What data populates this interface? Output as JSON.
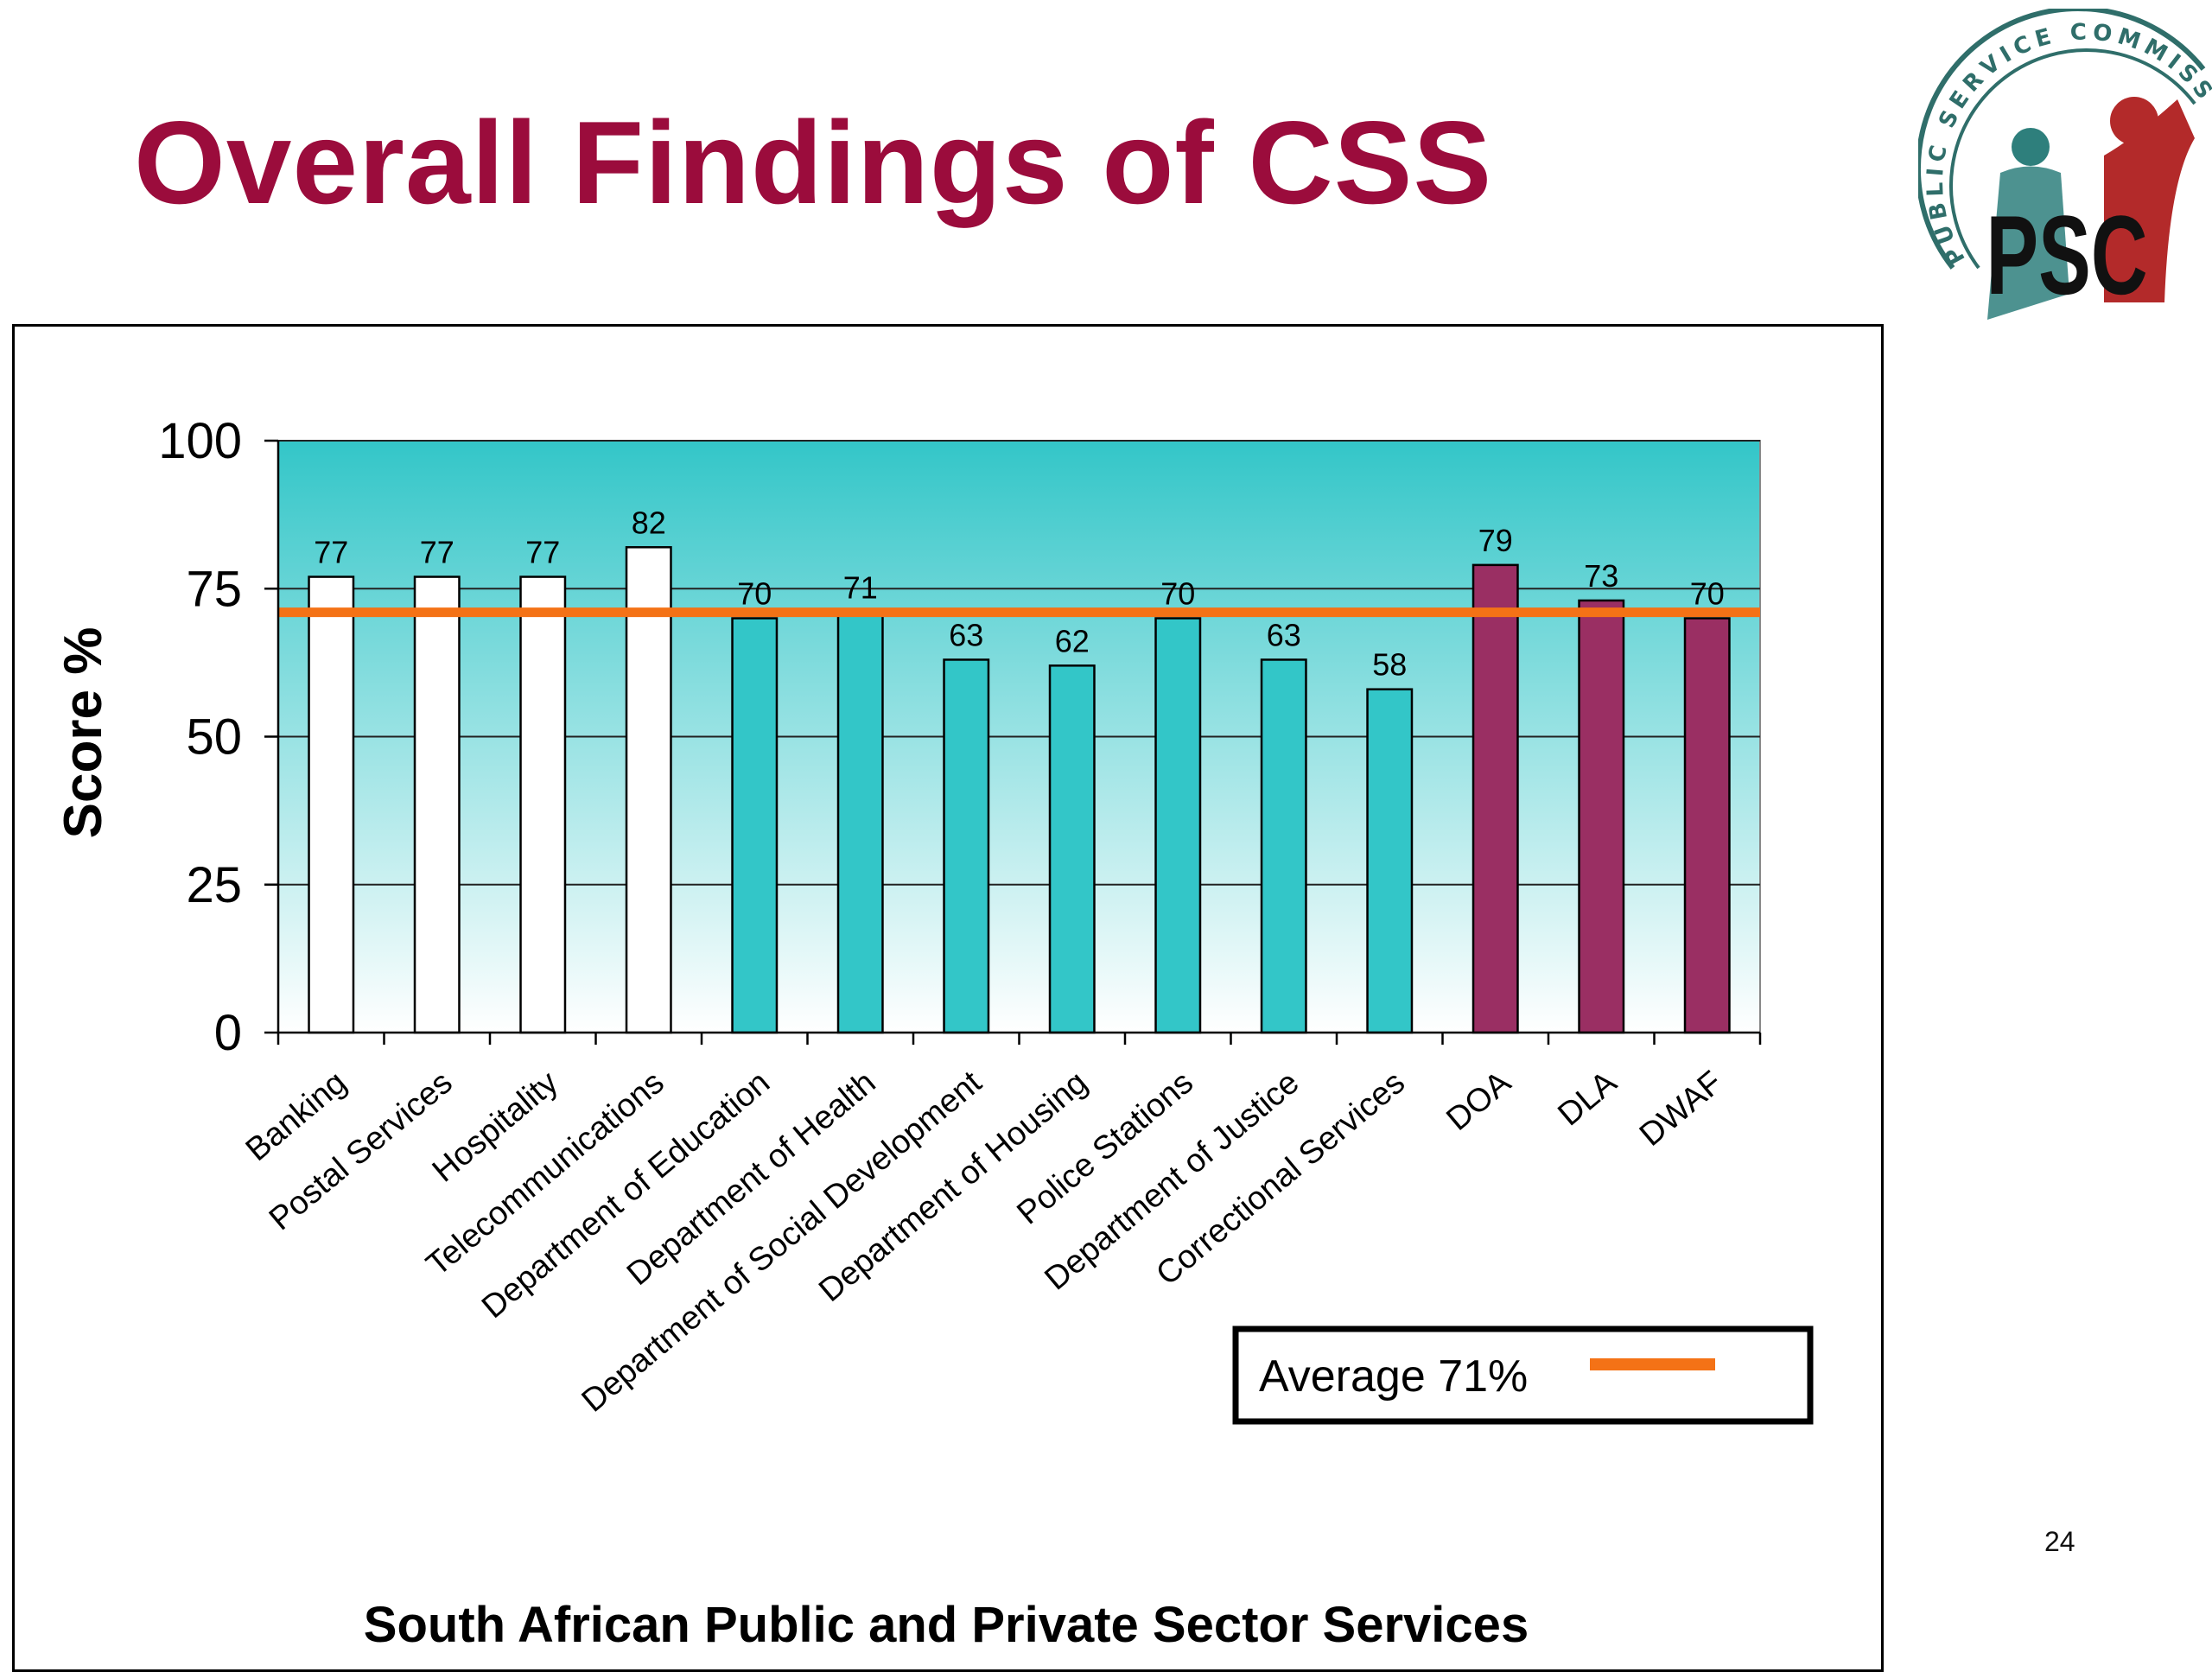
{
  "slide": {
    "title": "Overall Findings of CSS",
    "page_number": "24"
  },
  "logo": {
    "arc_text": "PUBLIC SERVICE COMMISSION",
    "letters": "PSC",
    "colors": {
      "teal": "#2e7f7c",
      "red": "#b32a2a",
      "ring": "#2f6e6a"
    }
  },
  "chart_data": {
    "type": "bar",
    "categories": [
      "Banking",
      "Postal Services",
      "Hospitality",
      "Telecommunications",
      "Department of Education",
      "Department of Health",
      "Department of Social Development",
      "Department of Housing",
      "Police Stations",
      "Department of Justice",
      "Correctional Services",
      "DOA",
      "DLA",
      "DWAF"
    ],
    "values": [
      77,
      77,
      77,
      82,
      70,
      71,
      63,
      62,
      70,
      63,
      58,
      79,
      73,
      70
    ],
    "groups": [
      "private",
      "private",
      "private",
      "private",
      "public",
      "public",
      "public",
      "public",
      "public",
      "public",
      "public",
      "dept",
      "dept",
      "dept"
    ],
    "group_colors": {
      "private": "#ffffff",
      "public": "#33c6c8",
      "dept": "#9a2f63"
    },
    "average": {
      "value": 71,
      "label": "Average 71%",
      "color": "#f47216"
    },
    "title": "",
    "xlabel": "South African Public and Private Sector Services",
    "ylabel": "Score %",
    "ylim": [
      0,
      100
    ],
    "yticks": [
      0,
      25,
      50,
      75,
      100
    ],
    "grid": true,
    "legend_position": "bottom-right",
    "plot_gradient": {
      "top": "#33c6c8",
      "bottom": "#ffffff"
    }
  }
}
